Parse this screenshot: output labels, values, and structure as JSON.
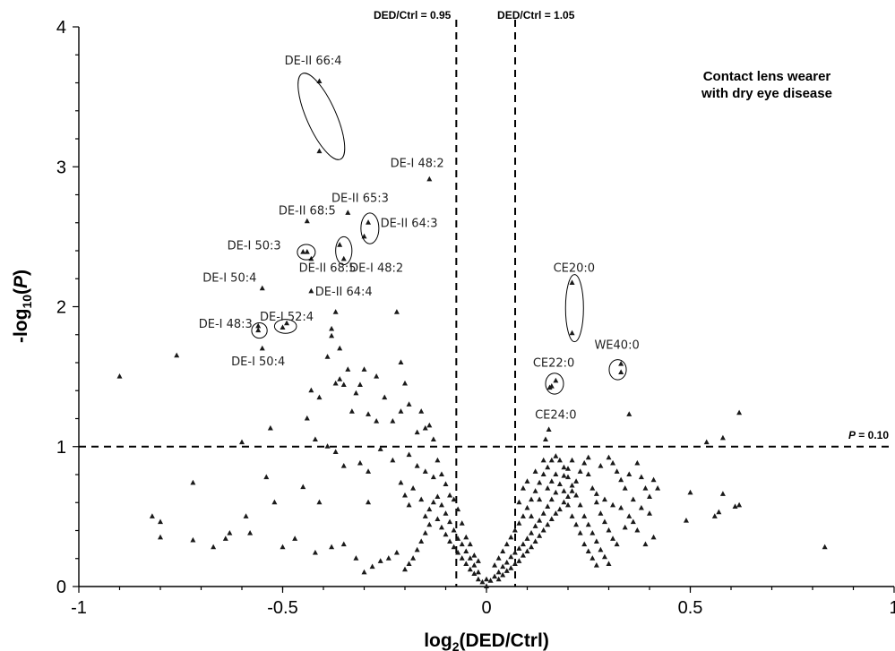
{
  "chart_data": {
    "type": "scatter",
    "title": "Contact lens wearer",
    "subtitle": "with dry eye disease",
    "xlabel": "log2(DED/Ctrl)",
    "xlabel_parts": {
      "base": "log",
      "sub": "2",
      "rest": "(DED/Ctrl)"
    },
    "ylabel": "-log10(P)",
    "ylabel_parts": {
      "pre": "-log",
      "sub": "10",
      "open": "(",
      "italic": "P",
      "close": ")"
    },
    "xlim": [
      -1,
      1
    ],
    "ylim": [
      0,
      4
    ],
    "x_ticks": [
      -1,
      -0.5,
      0,
      0.5,
      1
    ],
    "x_tick_labels": [
      "-1",
      "-0.5",
      "0",
      "0.5",
      "1"
    ],
    "y_ticks": [
      0,
      1,
      2,
      3,
      4
    ],
    "y_tick_labels": [
      "0",
      "1",
      "2",
      "3",
      "4"
    ],
    "grid": false,
    "reference_lines": {
      "vertical": [
        {
          "x": -0.074,
          "label": "DED/Ctrl = 0.95"
        },
        {
          "x": 0.0704,
          "label": "DED/Ctrl = 1.05"
        }
      ],
      "horizontal": [
        {
          "y": 1,
          "label_italic": "P",
          "label_rest": " = 0.10"
        }
      ]
    },
    "annotations": [
      {
        "text": "DE-II 66:4",
        "x": -0.425,
        "y": 3.73
      },
      {
        "text": "DE-I 48:2",
        "x": -0.17,
        "y": 3.0
      },
      {
        "text": "DE-II 65:3",
        "x": -0.31,
        "y": 2.75
      },
      {
        "text": "DE-II 68:5",
        "x": -0.44,
        "y": 2.66
      },
      {
        "text": "DE-II 64:3",
        "x": -0.19,
        "y": 2.57
      },
      {
        "text": "DE-I 50:3",
        "x": -0.57,
        "y": 2.41
      },
      {
        "text": "DE-II 68:5",
        "x": -0.39,
        "y": 2.25
      },
      {
        "text": "DE-I 48:2",
        "x": -0.27,
        "y": 2.25
      },
      {
        "text": "DE-I 50:4",
        "x": -0.63,
        "y": 2.18
      },
      {
        "text": "DE-II 64:4",
        "x": -0.35,
        "y": 2.08
      },
      {
        "text": "DE-I 52:4",
        "x": -0.49,
        "y": 1.9
      },
      {
        "text": "DE-I 48:3",
        "x": -0.64,
        "y": 1.85
      },
      {
        "text": "DE-I 50:4",
        "x": -0.56,
        "y": 1.58
      },
      {
        "text": "CE20:0",
        "x": 0.215,
        "y": 2.25
      },
      {
        "text": "WE40:0",
        "x": 0.32,
        "y": 1.7
      },
      {
        "text": "CE22:0",
        "x": 0.165,
        "y": 1.57
      },
      {
        "text": "CE24:0",
        "x": 0.17,
        "y": 1.2
      }
    ],
    "circled_groups": [
      {
        "name": "DE-II 66:4",
        "cx": -0.405,
        "cy": 3.36,
        "rx": 0.036,
        "ry": 0.335,
        "rot": -24
      },
      {
        "name": "DE-II 64:3",
        "cx": -0.286,
        "cy": 2.56,
        "rx": 0.022,
        "ry": 0.11,
        "rot": 0
      },
      {
        "name": "DE-II 68:5 / DE-I 48:2",
        "cx": -0.35,
        "cy": 2.4,
        "rx": 0.02,
        "ry": 0.1,
        "rot": 0
      },
      {
        "name": "DE-I 50:3",
        "cx": -0.442,
        "cy": 2.39,
        "rx": 0.022,
        "ry": 0.055,
        "rot": 0
      },
      {
        "name": "DE-I 52:4",
        "cx": -0.493,
        "cy": 1.86,
        "rx": 0.027,
        "ry": 0.05,
        "rot": 0
      },
      {
        "name": "DE-I 48:3",
        "cx": -0.557,
        "cy": 1.83,
        "rx": 0.019,
        "ry": 0.055,
        "rot": 0
      },
      {
        "name": "CE20:0",
        "cx": 0.216,
        "cy": 1.99,
        "rx": 0.022,
        "ry": 0.24,
        "rot": 0
      },
      {
        "name": "CE22:0",
        "cx": 0.167,
        "cy": 1.45,
        "rx": 0.022,
        "ry": 0.075,
        "rot": 0
      },
      {
        "name": "WE40:0",
        "cx": 0.322,
        "cy": 1.55,
        "rx": 0.021,
        "ry": 0.072,
        "rot": 0
      }
    ],
    "points": [
      [
        -0.41,
        3.61
      ],
      [
        -0.41,
        3.11
      ],
      [
        -0.14,
        2.91
      ],
      [
        -0.29,
        2.6
      ],
      [
        -0.3,
        2.5
      ],
      [
        -0.34,
        2.67
      ],
      [
        -0.44,
        2.61
      ],
      [
        -0.36,
        2.44
      ],
      [
        -0.35,
        2.34
      ],
      [
        -0.43,
        2.34
      ],
      [
        -0.45,
        2.39
      ],
      [
        -0.44,
        2.39
      ],
      [
        -0.55,
        2.13
      ],
      [
        -0.43,
        2.11
      ],
      [
        -0.49,
        1.88
      ],
      [
        -0.5,
        1.85
      ],
      [
        -0.56,
        1.83
      ],
      [
        -0.56,
        1.86
      ],
      [
        -0.55,
        1.7
      ],
      [
        -0.22,
        1.96
      ],
      [
        -0.37,
        1.96
      ],
      [
        -0.76,
        1.65
      ],
      [
        -0.9,
        1.5
      ],
      [
        0.21,
        2.17
      ],
      [
        0.21,
        1.81
      ],
      [
        0.33,
        1.59
      ],
      [
        0.33,
        1.53
      ],
      [
        0.17,
        1.47
      ],
      [
        0.16,
        1.43
      ],
      [
        0.155,
        1.42
      ],
      [
        0.153,
        1.12
      ],
      [
        0.145,
        1.05
      ],
      [
        0.35,
        1.23
      ],
      [
        0.62,
        1.24
      ],
      [
        0.58,
        1.06
      ],
      [
        0.54,
        1.03
      ],
      [
        -0.38,
        1.84
      ],
      [
        -0.38,
        1.79
      ],
      [
        -0.36,
        1.7
      ],
      [
        -0.39,
        1.64
      ],
      [
        -0.34,
        1.55
      ],
      [
        -0.36,
        1.48
      ],
      [
        -0.37,
        1.45
      ],
      [
        -0.35,
        1.44
      ],
      [
        -0.32,
        1.38
      ],
      [
        -0.31,
        1.44
      ],
      [
        -0.3,
        1.55
      ],
      [
        -0.27,
        1.5
      ],
      [
        -0.25,
        1.35
      ],
      [
        -0.21,
        1.6
      ],
      [
        -0.2,
        1.45
      ],
      [
        -0.19,
        1.3
      ],
      [
        -0.16,
        1.25
      ],
      [
        -0.14,
        1.15
      ],
      [
        -0.15,
        1.13
      ],
      [
        -0.13,
        1.05
      ],
      [
        -0.17,
        1.1
      ],
      [
        -0.21,
        1.25
      ],
      [
        -0.23,
        1.18
      ],
      [
        -0.27,
        1.18
      ],
      [
        -0.29,
        1.23
      ],
      [
        -0.33,
        1.25
      ],
      [
        -0.41,
        1.35
      ],
      [
        -0.43,
        1.4
      ],
      [
        -0.44,
        1.2
      ],
      [
        -0.42,
        1.05
      ],
      [
        -0.39,
        1.0
      ],
      [
        -0.37,
        0.96
      ],
      [
        -0.35,
        0.86
      ],
      [
        -0.31,
        0.88
      ],
      [
        -0.29,
        0.82
      ],
      [
        -0.26,
        0.98
      ],
      [
        -0.23,
        0.9
      ],
      [
        -0.19,
        0.94
      ],
      [
        -0.17,
        0.86
      ],
      [
        -0.15,
        0.82
      ],
      [
        -0.13,
        0.78
      ],
      [
        -0.12,
        0.9
      ],
      [
        -0.11,
        0.8
      ],
      [
        -0.1,
        0.73
      ],
      [
        -0.09,
        0.65
      ],
      [
        -0.08,
        0.62
      ],
      [
        -0.07,
        0.55
      ],
      [
        -0.06,
        0.45
      ],
      [
        -0.6,
        1.03
      ],
      [
        -0.53,
        1.13
      ],
      [
        -0.54,
        0.78
      ],
      [
        -0.45,
        0.71
      ],
      [
        -0.41,
        0.6
      ],
      [
        -0.29,
        0.6
      ],
      [
        -0.21,
        0.74
      ],
      [
        -0.2,
        0.65
      ],
      [
        -0.19,
        0.58
      ],
      [
        -0.18,
        0.7
      ],
      [
        -0.16,
        0.62
      ],
      [
        -0.15,
        0.5
      ],
      [
        -0.14,
        0.55
      ],
      [
        -0.12,
        0.48
      ],
      [
        -0.11,
        0.42
      ],
      [
        -0.1,
        0.37
      ],
      [
        -0.09,
        0.32
      ],
      [
        -0.08,
        0.28
      ],
      [
        -0.07,
        0.24
      ],
      [
        -0.06,
        0.2
      ],
      [
        -0.05,
        0.16
      ],
      [
        -0.04,
        0.12
      ],
      [
        -0.03,
        0.09
      ],
      [
        -0.02,
        0.05
      ],
      [
        -0.01,
        0.03
      ],
      [
        -0.02,
        0.1
      ],
      [
        -0.03,
        0.15
      ],
      [
        -0.04,
        0.2
      ],
      [
        -0.05,
        0.25
      ],
      [
        -0.06,
        0.3
      ],
      [
        -0.07,
        0.34
      ],
      [
        -0.08,
        0.4
      ],
      [
        -0.09,
        0.46
      ],
      [
        -0.1,
        0.52
      ],
      [
        -0.11,
        0.58
      ],
      [
        -0.12,
        0.64
      ],
      [
        -0.13,
        0.6
      ],
      [
        -0.14,
        0.44
      ],
      [
        -0.15,
        0.38
      ],
      [
        -0.16,
        0.32
      ],
      [
        -0.17,
        0.26
      ],
      [
        -0.18,
        0.2
      ],
      [
        -0.19,
        0.16
      ],
      [
        -0.2,
        0.12
      ],
      [
        -0.22,
        0.24
      ],
      [
        -0.24,
        0.2
      ],
      [
        -0.26,
        0.18
      ],
      [
        -0.28,
        0.14
      ],
      [
        -0.3,
        0.1
      ],
      [
        -0.32,
        0.2
      ],
      [
        -0.35,
        0.3
      ],
      [
        -0.38,
        0.28
      ],
      [
        -0.42,
        0.24
      ],
      [
        -0.47,
        0.34
      ],
      [
        -0.5,
        0.28
      ],
      [
        -0.58,
        0.38
      ],
      [
        -0.63,
        0.38
      ],
      [
        -0.64,
        0.34
      ],
      [
        -0.67,
        0.28
      ],
      [
        -0.72,
        0.33
      ],
      [
        -0.8,
        0.35
      ],
      [
        -0.82,
        0.5
      ],
      [
        -0.8,
        0.46
      ],
      [
        -0.72,
        0.74
      ],
      [
        -0.59,
        0.5
      ],
      [
        -0.52,
        0.6
      ],
      [
        -0.05,
        0.35
      ],
      [
        -0.04,
        0.3
      ],
      [
        -0.03,
        0.22
      ],
      [
        -0.02,
        0.18
      ],
      [
        0.0,
        0.05
      ],
      [
        0.0,
        0.0
      ],
      [
        0.01,
        0.04
      ],
      [
        0.02,
        0.07
      ],
      [
        0.03,
        0.1
      ],
      [
        0.04,
        0.14
      ],
      [
        0.05,
        0.17
      ],
      [
        0.06,
        0.21
      ],
      [
        0.07,
        0.24
      ],
      [
        0.08,
        0.27
      ],
      [
        0.09,
        0.3
      ],
      [
        0.1,
        0.34
      ],
      [
        0.11,
        0.38
      ],
      [
        0.12,
        0.43
      ],
      [
        0.13,
        0.47
      ],
      [
        0.14,
        0.52
      ],
      [
        0.15,
        0.57
      ],
      [
        0.16,
        0.62
      ],
      [
        0.17,
        0.67
      ],
      [
        0.18,
        0.73
      ],
      [
        0.19,
        0.79
      ],
      [
        0.2,
        0.84
      ],
      [
        0.21,
        0.9
      ],
      [
        0.02,
        0.15
      ],
      [
        0.03,
        0.2
      ],
      [
        0.04,
        0.25
      ],
      [
        0.05,
        0.3
      ],
      [
        0.06,
        0.35
      ],
      [
        0.07,
        0.4
      ],
      [
        0.08,
        0.45
      ],
      [
        0.09,
        0.5
      ],
      [
        0.1,
        0.56
      ],
      [
        0.11,
        0.62
      ],
      [
        0.12,
        0.68
      ],
      [
        0.13,
        0.74
      ],
      [
        0.14,
        0.8
      ],
      [
        0.15,
        0.85
      ],
      [
        0.16,
        0.9
      ],
      [
        0.17,
        0.93
      ],
      [
        0.18,
        0.9
      ],
      [
        0.19,
        0.85
      ],
      [
        0.2,
        0.78
      ],
      [
        0.21,
        0.72
      ],
      [
        0.22,
        0.65
      ],
      [
        0.23,
        0.58
      ],
      [
        0.24,
        0.5
      ],
      [
        0.25,
        0.44
      ],
      [
        0.26,
        0.38
      ],
      [
        0.27,
        0.32
      ],
      [
        0.28,
        0.26
      ],
      [
        0.29,
        0.21
      ],
      [
        0.3,
        0.16
      ],
      [
        0.03,
        0.05
      ],
      [
        0.04,
        0.08
      ],
      [
        0.05,
        0.11
      ],
      [
        0.06,
        0.13
      ],
      [
        0.07,
        0.16
      ],
      [
        0.08,
        0.18
      ],
      [
        0.09,
        0.22
      ],
      [
        0.1,
        0.25
      ],
      [
        0.11,
        0.28
      ],
      [
        0.12,
        0.32
      ],
      [
        0.13,
        0.36
      ],
      [
        0.14,
        0.4
      ],
      [
        0.15,
        0.44
      ],
      [
        0.16,
        0.48
      ],
      [
        0.17,
        0.52
      ],
      [
        0.18,
        0.55
      ],
      [
        0.19,
        0.6
      ],
      [
        0.2,
        0.64
      ],
      [
        0.21,
        0.68
      ],
      [
        0.22,
        0.75
      ],
      [
        0.23,
        0.82
      ],
      [
        0.24,
        0.88
      ],
      [
        0.25,
        0.8
      ],
      [
        0.26,
        0.7
      ],
      [
        0.27,
        0.6
      ],
      [
        0.28,
        0.52
      ],
      [
        0.29,
        0.46
      ],
      [
        0.3,
        0.4
      ],
      [
        0.31,
        0.34
      ],
      [
        0.32,
        0.3
      ],
      [
        0.25,
        0.92
      ],
      [
        0.28,
        0.86
      ],
      [
        0.3,
        0.92
      ],
      [
        0.31,
        0.88
      ],
      [
        0.32,
        0.82
      ],
      [
        0.33,
        0.76
      ],
      [
        0.34,
        0.7
      ],
      [
        0.35,
        0.8
      ],
      [
        0.36,
        0.62
      ],
      [
        0.37,
        0.88
      ],
      [
        0.38,
        0.78
      ],
      [
        0.39,
        0.7
      ],
      [
        0.4,
        0.64
      ],
      [
        0.41,
        0.76
      ],
      [
        0.42,
        0.7
      ],
      [
        0.4,
        0.52
      ],
      [
        0.38,
        0.56
      ],
      [
        0.36,
        0.46
      ],
      [
        0.34,
        0.42
      ],
      [
        0.33,
        0.56
      ],
      [
        0.31,
        0.58
      ],
      [
        0.29,
        0.62
      ],
      [
        0.27,
        0.66
      ],
      [
        0.35,
        0.5
      ],
      [
        0.37,
        0.4
      ],
      [
        0.39,
        0.3
      ],
      [
        0.41,
        0.35
      ],
      [
        0.5,
        0.67
      ],
      [
        0.49,
        0.47
      ],
      [
        0.56,
        0.5
      ],
      [
        0.57,
        0.53
      ],
      [
        0.58,
        0.66
      ],
      [
        0.61,
        0.57
      ],
      [
        0.62,
        0.58
      ],
      [
        0.83,
        0.28
      ],
      [
        0.08,
        0.6
      ],
      [
        0.09,
        0.7
      ],
      [
        0.1,
        0.75
      ],
      [
        0.12,
        0.82
      ],
      [
        0.14,
        0.9
      ],
      [
        0.11,
        0.5
      ],
      [
        0.13,
        0.62
      ],
      [
        0.15,
        0.7
      ],
      [
        0.16,
        0.75
      ],
      [
        0.17,
        0.8
      ],
      [
        0.19,
        0.68
      ],
      [
        0.2,
        0.58
      ],
      [
        0.21,
        0.5
      ],
      [
        0.22,
        0.44
      ],
      [
        0.23,
        0.38
      ],
      [
        0.24,
        0.3
      ],
      [
        0.25,
        0.25
      ],
      [
        0.26,
        0.2
      ],
      [
        0.27,
        0.15
      ]
    ]
  }
}
